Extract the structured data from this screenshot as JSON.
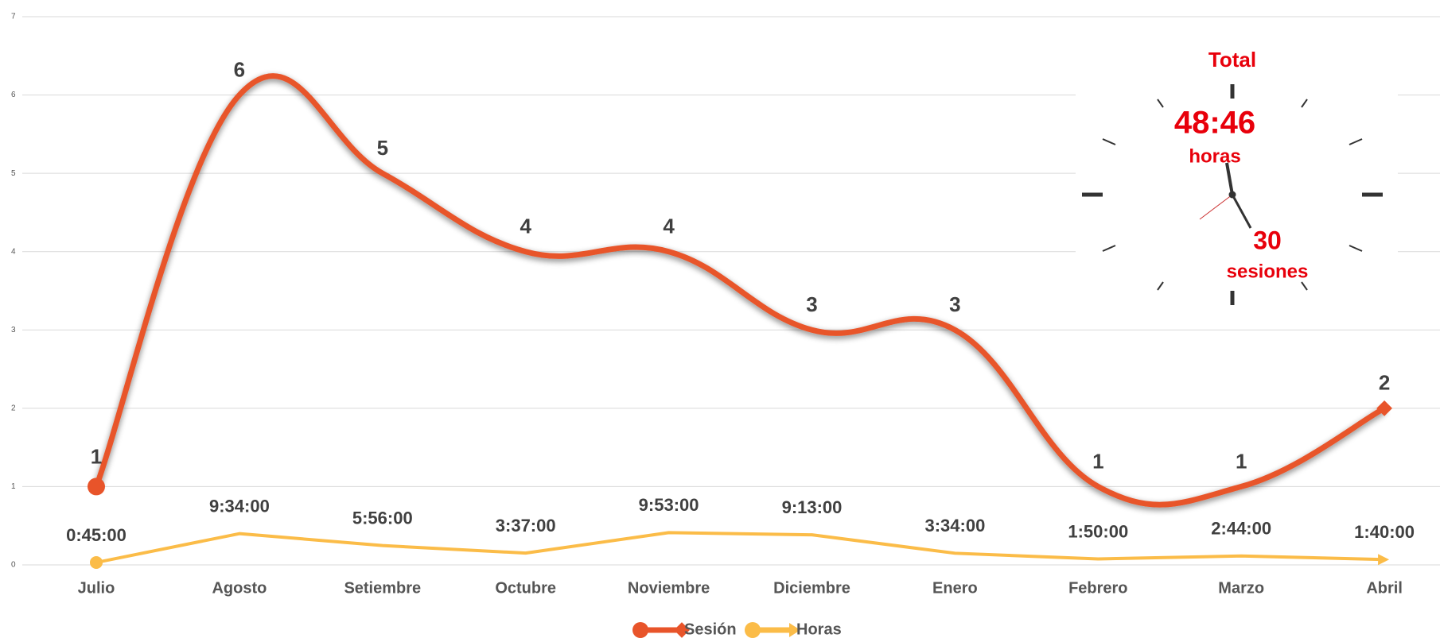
{
  "chart_data": {
    "type": "line",
    "categories": [
      "Julio",
      "Agosto",
      "Setiembre",
      "Octubre",
      "Noviembre",
      "Diciembre",
      "Enero",
      "Febrero",
      "Marzo",
      "Abril"
    ],
    "series": [
      {
        "name": "Sesión",
        "color": "#e8542a",
        "values": [
          1,
          6,
          5,
          4,
          4,
          3,
          3,
          1,
          1,
          2
        ]
      },
      {
        "name": "Horas",
        "color": "#fbbc48",
        "values": [
          0.031,
          0.399,
          0.247,
          0.151,
          0.412,
          0.384,
          0.149,
          0.076,
          0.114,
          0.069
        ],
        "value_labels": [
          "0:45:00",
          "9:34:00",
          "5:56:00",
          "3:37:00",
          "9:53:00",
          "9:13:00",
          "3:34:00",
          "1:50:00",
          "2:44:00",
          "1:40:00"
        ]
      }
    ],
    "ylim": [
      0,
      7
    ],
    "yticks": [
      0,
      1,
      2,
      3,
      4,
      5,
      6,
      7
    ],
    "grid": true,
    "annotations": [
      "Total",
      "48:46",
      "horas",
      "30",
      "sesiones"
    ]
  }
}
